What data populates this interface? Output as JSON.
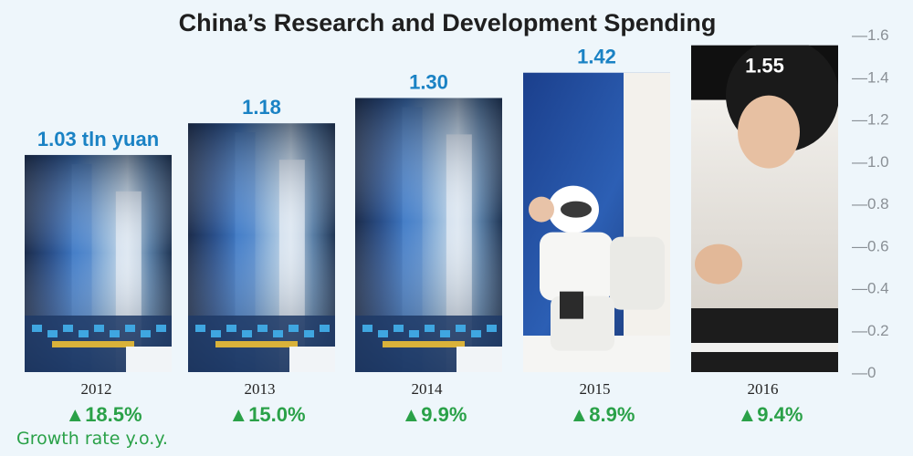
{
  "chart_data": {
    "type": "bar",
    "title": "China’s Research and Development Spending",
    "categories": [
      "2012",
      "2013",
      "2014",
      "2015",
      "2016"
    ],
    "values": [
      1.03,
      1.18,
      1.3,
      1.42,
      1.55
    ],
    "value_labels": [
      "1.03 tln yuan",
      "1.18",
      "1.30",
      "1.42",
      "1.55"
    ],
    "growth_labels": [
      "▲18.5%",
      "▲15.0%",
      "▲9.9%",
      "▲8.9%",
      "▲9.4%"
    ],
    "growth_values": [
      18.5,
      15.0,
      9.9,
      8.9,
      9.4
    ],
    "growth_note": "Growth rate y.o.y.",
    "ylim": [
      0,
      1.6
    ],
    "yticks": [
      "1.6",
      "1.4",
      "1.2",
      "1.0",
      "0.8",
      "0.6",
      "0.4",
      "0.2",
      "0"
    ],
    "ytick_prefix": "—",
    "axis_position": "right",
    "grid": false,
    "colors": {
      "background": "#eef6fb",
      "value_label": "#1a82c4",
      "growth": "#2aa148",
      "tick": "#8a9096"
    }
  }
}
